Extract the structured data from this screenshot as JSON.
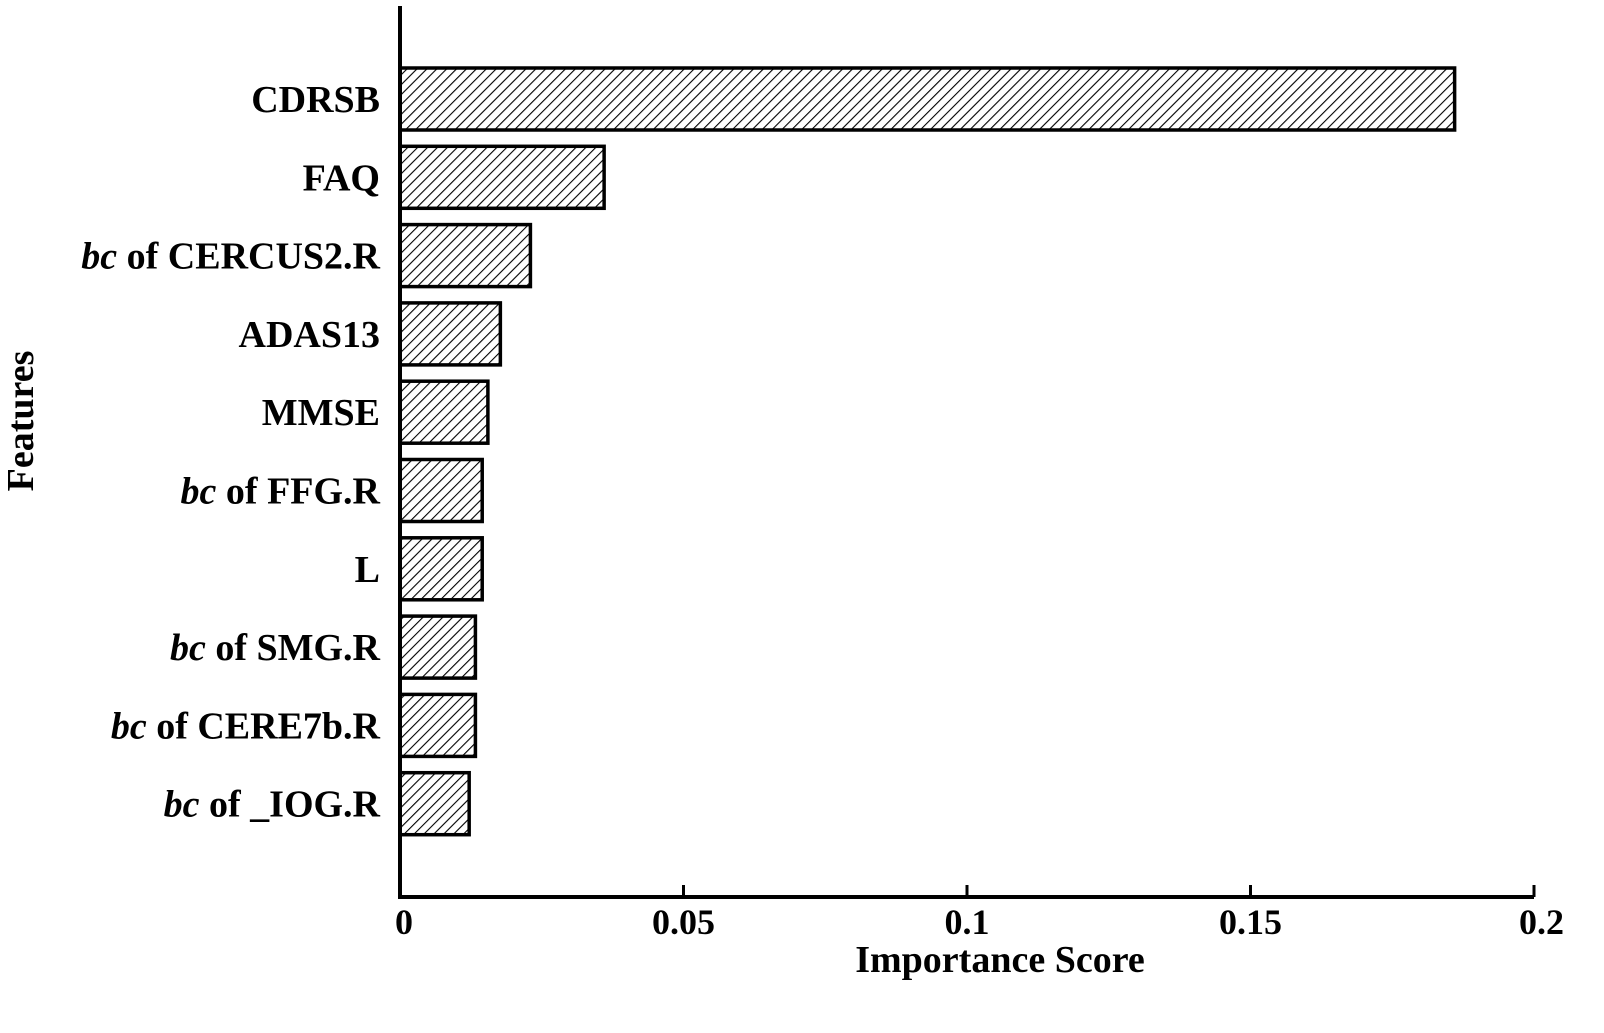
{
  "chart_data": {
    "type": "bar",
    "orientation": "horizontal",
    "title": "",
    "xlabel": "Importance Score",
    "ylabel": "Features",
    "xlim": [
      0,
      0.2
    ],
    "x_ticks": [
      0,
      0.05,
      0.1,
      0.15,
      0.2
    ],
    "x_tick_labels": [
      "0",
      "0.05",
      "0.1",
      "0.15",
      "0.2"
    ],
    "grid": false,
    "legend": "none",
    "bar_fill": "diagonal-hatch",
    "colors": {
      "bar_stroke": "#000000",
      "hatch": "#000000",
      "background": "#ffffff"
    },
    "categories": [
      {
        "prefix": "",
        "name": "CDRSB",
        "value": 0.186
      },
      {
        "prefix": "",
        "name": "FAQ",
        "value": 0.036
      },
      {
        "prefix": "bc",
        "name": " of CERCUS2.R",
        "value": 0.023
      },
      {
        "prefix": "",
        "name": "ADAS13",
        "value": 0.0177
      },
      {
        "prefix": "",
        "name": "MMSE",
        "value": 0.0155
      },
      {
        "prefix": "bc",
        "name": " of FFG.R",
        "value": 0.0145
      },
      {
        "prefix": "",
        "name": "L",
        "value": 0.0145
      },
      {
        "prefix": "bc",
        "name": " of SMG.R",
        "value": 0.0133
      },
      {
        "prefix": "bc",
        "name": " of CERE7b.R",
        "value": 0.0133
      },
      {
        "prefix": "bc",
        "name": " of _IOG.R",
        "value": 0.0122
      }
    ]
  }
}
